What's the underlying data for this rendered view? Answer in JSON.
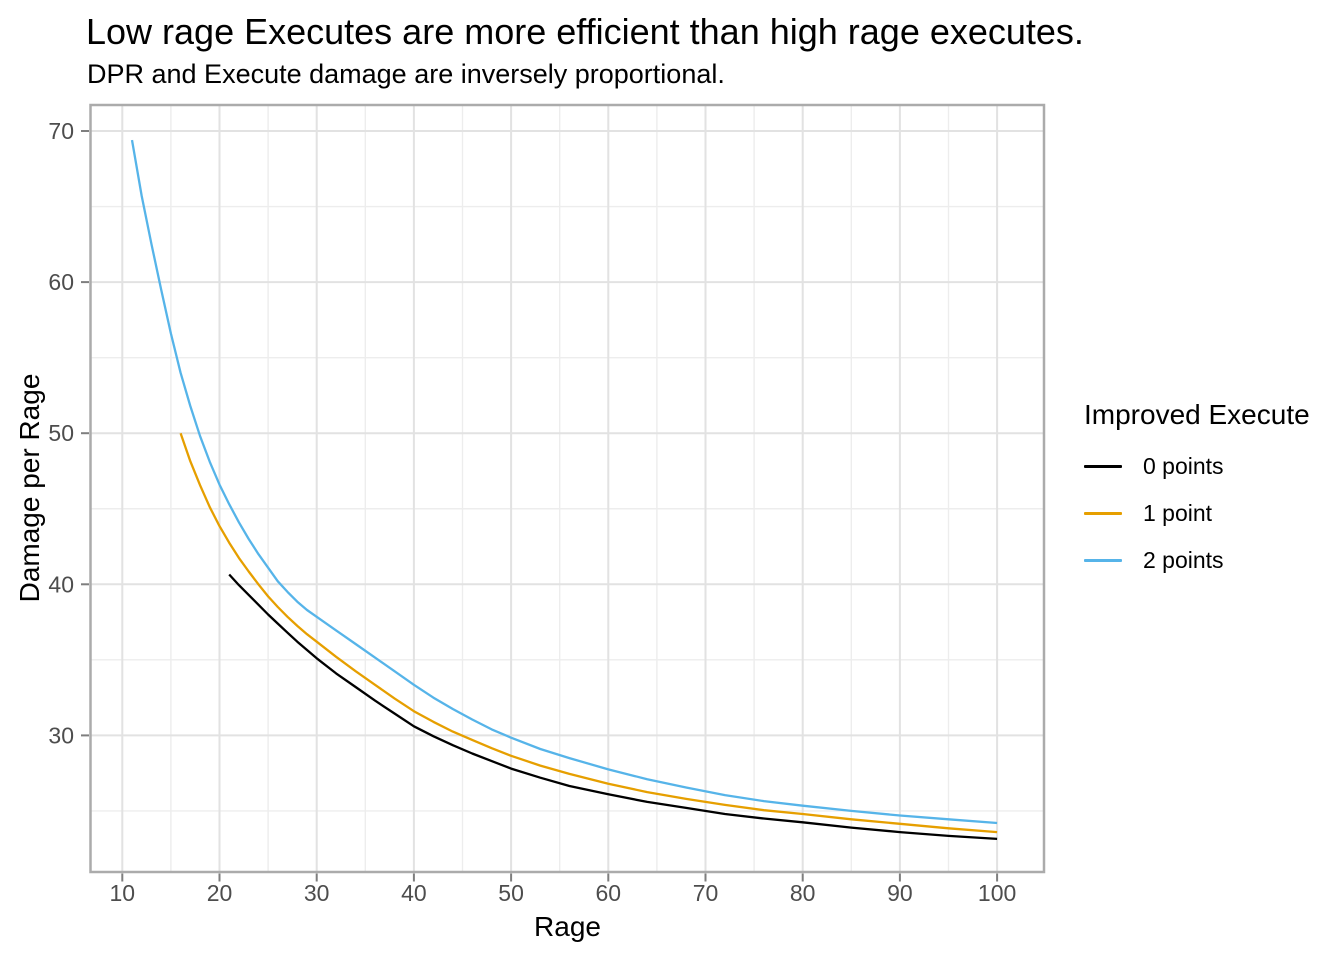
{
  "title": "Low rage Executes are more efficient than high rage executes.",
  "subtitle": "DPR and Execute damage are inversely proportional.",
  "axes": {
    "x": {
      "label": "Rage",
      "major_ticks": [
        10,
        20,
        30,
        40,
        50,
        60,
        70,
        80,
        90,
        100
      ],
      "minor_ticks": [
        15,
        25,
        35,
        45,
        55,
        65,
        75,
        85,
        95
      ],
      "range": [
        6.8,
        104.8
      ]
    },
    "y": {
      "label": "Damage per Rage",
      "major_ticks": [
        30,
        40,
        50,
        60,
        70
      ],
      "minor_ticks": [
        25,
        35,
        45,
        55,
        65
      ],
      "range": [
        20.9,
        71.7
      ]
    }
  },
  "legend": {
    "title": "Improved Execute",
    "items": [
      {
        "label": "0 points",
        "color": "#000000"
      },
      {
        "label": "1 point",
        "color": "#E69F00"
      },
      {
        "label": "2 points",
        "color": "#56B4E9"
      }
    ]
  },
  "style_colors": {
    "grid_major": "#E2E2E2",
    "grid_minor": "#EDEDED",
    "panel_border": "#ABABAB",
    "tick_mark": "#7E7E7E",
    "tick_label": "#4D4D4D",
    "background": "#FFFFFF"
  },
  "chart_data": {
    "type": "line",
    "title": "Low rage Executes are more efficient than high rage executes.",
    "subtitle": "DPR and Execute damage are inversely proportional.",
    "xlabel": "Rage",
    "ylabel": "Damage per Rage",
    "xlim": [
      6.8,
      104.8
    ],
    "ylim": [
      20.9,
      71.7
    ],
    "x_ticks": [
      10,
      20,
      30,
      40,
      50,
      60,
      70,
      80,
      90,
      100
    ],
    "y_ticks": [
      30,
      40,
      50,
      60,
      70
    ],
    "grid": true,
    "legend_title": "Improved Execute",
    "legend_position": "right",
    "series": [
      {
        "name": "0 points",
        "color": "#000000",
        "points": [
          [
            21,
            40.65
          ],
          [
            22,
            39.95
          ],
          [
            23,
            39.3
          ],
          [
            24,
            38.65
          ],
          [
            25,
            38.0
          ],
          [
            26,
            37.4
          ],
          [
            27,
            36.8
          ],
          [
            28,
            36.2
          ],
          [
            29,
            35.65
          ],
          [
            30,
            35.1
          ],
          [
            32,
            34.1
          ],
          [
            34,
            33.2
          ],
          [
            36,
            32.3
          ],
          [
            38,
            31.45
          ],
          [
            40,
            30.6
          ],
          [
            42,
            29.95
          ],
          [
            44,
            29.35
          ],
          [
            46,
            28.8
          ],
          [
            48,
            28.3
          ],
          [
            50,
            27.8
          ],
          [
            53,
            27.2
          ],
          [
            56,
            26.65
          ],
          [
            60,
            26.1
          ],
          [
            64,
            25.6
          ],
          [
            68,
            25.2
          ],
          [
            72,
            24.8
          ],
          [
            76,
            24.5
          ],
          [
            80,
            24.25
          ],
          [
            85,
            23.9
          ],
          [
            90,
            23.6
          ],
          [
            95,
            23.35
          ],
          [
            100,
            23.15
          ]
        ]
      },
      {
        "name": "1 point",
        "color": "#E69F00",
        "points": [
          [
            16,
            50.0
          ],
          [
            17,
            48.15
          ],
          [
            18,
            46.55
          ],
          [
            19,
            45.1
          ],
          [
            20,
            43.85
          ],
          [
            21,
            42.75
          ],
          [
            22,
            41.75
          ],
          [
            23,
            40.85
          ],
          [
            24,
            40.0
          ],
          [
            25,
            39.2
          ],
          [
            26,
            38.5
          ],
          [
            27,
            37.85
          ],
          [
            28,
            37.25
          ],
          [
            29,
            36.7
          ],
          [
            30,
            36.2
          ],
          [
            32,
            35.2
          ],
          [
            34,
            34.25
          ],
          [
            36,
            33.35
          ],
          [
            38,
            32.45
          ],
          [
            40,
            31.6
          ],
          [
            42,
            30.9
          ],
          [
            44,
            30.25
          ],
          [
            46,
            29.7
          ],
          [
            48,
            29.15
          ],
          [
            50,
            28.65
          ],
          [
            53,
            28.0
          ],
          [
            56,
            27.45
          ],
          [
            60,
            26.8
          ],
          [
            64,
            26.25
          ],
          [
            68,
            25.8
          ],
          [
            72,
            25.4
          ],
          [
            76,
            25.05
          ],
          [
            80,
            24.8
          ],
          [
            85,
            24.45
          ],
          [
            90,
            24.15
          ],
          [
            95,
            23.85
          ],
          [
            100,
            23.6
          ]
        ]
      },
      {
        "name": "2 points",
        "color": "#56B4E9",
        "points": [
          [
            11,
            69.4
          ],
          [
            12,
            65.7
          ],
          [
            13,
            62.5
          ],
          [
            14,
            59.5
          ],
          [
            15,
            56.6
          ],
          [
            16,
            54.0
          ],
          [
            17,
            51.8
          ],
          [
            18,
            49.8
          ],
          [
            19,
            48.1
          ],
          [
            20,
            46.6
          ],
          [
            21,
            45.3
          ],
          [
            22,
            44.1
          ],
          [
            23,
            43.0
          ],
          [
            24,
            42.0
          ],
          [
            25,
            41.1
          ],
          [
            26,
            40.2
          ],
          [
            27,
            39.5
          ],
          [
            28,
            38.85
          ],
          [
            29,
            38.3
          ],
          [
            30,
            37.85
          ],
          [
            32,
            36.95
          ],
          [
            34,
            36.05
          ],
          [
            36,
            35.15
          ],
          [
            38,
            34.25
          ],
          [
            40,
            33.35
          ],
          [
            42,
            32.5
          ],
          [
            44,
            31.75
          ],
          [
            46,
            31.05
          ],
          [
            48,
            30.4
          ],
          [
            50,
            29.85
          ],
          [
            53,
            29.1
          ],
          [
            56,
            28.5
          ],
          [
            60,
            27.75
          ],
          [
            64,
            27.1
          ],
          [
            68,
            26.55
          ],
          [
            72,
            26.05
          ],
          [
            76,
            25.65
          ],
          [
            80,
            25.35
          ],
          [
            85,
            25.0
          ],
          [
            90,
            24.7
          ],
          [
            95,
            24.45
          ],
          [
            100,
            24.2
          ]
        ]
      }
    ]
  }
}
